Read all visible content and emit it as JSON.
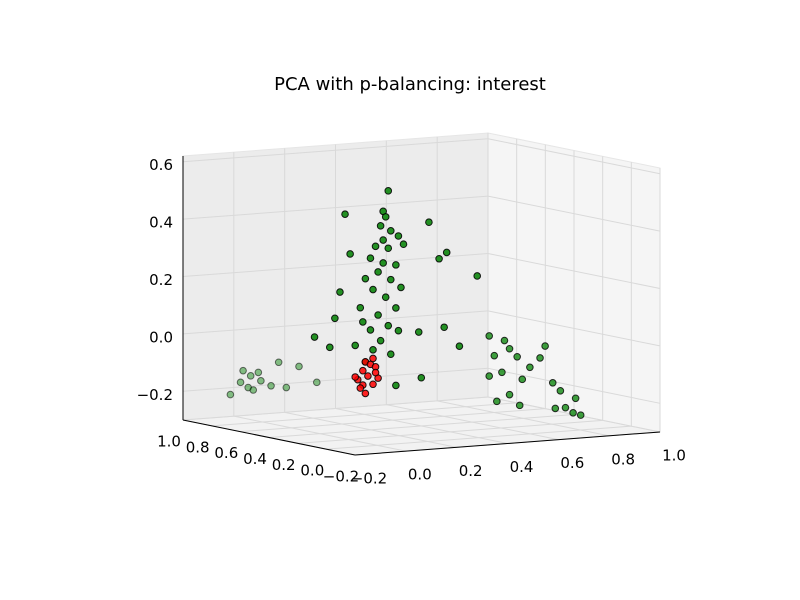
{
  "chart_data": {
    "type": "scatter3d",
    "title": "PCA with p-balancing: interest",
    "xlim": [
      -0.2,
      1.0
    ],
    "ylim": [
      -0.2,
      1.0
    ],
    "zlim": [
      -0.3,
      0.62
    ],
    "xticks": [
      {
        "value": -0.2,
        "label": "−0.2"
      },
      {
        "value": 0,
        "label": "0.0"
      },
      0.2,
      0.4,
      0.6,
      0.8,
      {
        "value": 1,
        "label": "1.0"
      }
    ],
    "yticks": [
      {
        "value": -0.2,
        "label": "−0.2"
      },
      {
        "value": 0,
        "label": "0.0"
      },
      0.2,
      0.4,
      0.6,
      0.8,
      {
        "value": 1,
        "label": "1.0"
      }
    ],
    "zticks": [
      {
        "value": -0.2,
        "label": "−0.2"
      },
      {
        "value": 0,
        "label": "0.0"
      },
      0.2,
      0.4,
      0.6
    ],
    "grid": true,
    "series": [
      {
        "color": "#008000",
        "x": [
          0.1,
          0.08,
          0.09,
          0.07,
          0.11,
          0.08,
          0.14,
          0.05,
          0.1,
          0.16,
          0.03,
          0.08,
          0.13,
          0.06,
          0.01,
          0.11,
          0.15,
          0.04,
          0.09,
          -0.01,
          0.13,
          0.06,
          0.0,
          0.1,
          0.03,
          0.14,
          0.07,
          -0.03,
          0.04,
          0.11,
          0.01,
          -0.07,
          -0.05,
          -0.09,
          -0.11,
          -0.19,
          -0.13,
          0.26,
          0.3,
          0.33,
          0.45,
          0.32,
          0.38,
          0.22,
          0.13,
          0.23,
          -0.07,
          -0.03,
          0.01,
          0.04,
          0.05,
          0.0,
          0.09,
          0.12,
          0.15,
          0.2,
          0.27,
          -0.02,
          0.02,
          0.61,
          0.63,
          0.67,
          0.69,
          0.72,
          0.74,
          0.61,
          0.64,
          0.69,
          0.73,
          0.77,
          0.83,
          0.81,
          0.86,
          0.89,
          0.91,
          0.95,
          0.94,
          0.97,
          0.87,
          0.66
        ],
        "y": [
          0.1,
          0.1,
          0.1,
          0.1,
          0.1,
          0.1,
          0.1,
          0.1,
          0.1,
          0.1,
          0.1,
          0.1,
          0.1,
          0.1,
          0.1,
          0.1,
          0.1,
          0.1,
          0.1,
          0.1,
          0.1,
          0.1,
          0.1,
          0.1,
          0.1,
          0.1,
          0.1,
          0.1,
          0.1,
          0.1,
          0.1,
          0.1,
          0.1,
          0.1,
          0.1,
          0.1,
          0.1,
          0.1,
          0.1,
          0.1,
          0.1,
          0.1,
          0.1,
          0.1,
          0.1,
          0.1,
          0.9,
          0.9,
          0.9,
          0.9,
          0.9,
          0.9,
          0.9,
          0.9,
          0.9,
          0.9,
          0.9,
          0.9,
          0.9,
          0.3,
          0.3,
          0.3,
          0.3,
          0.3,
          0.3,
          0.3,
          0.3,
          0.3,
          0.3,
          0.3,
          0.3,
          0.3,
          0.3,
          0.3,
          0.3,
          0.3,
          0.3,
          0.3,
          0.3,
          0.3
        ],
        "z": [
          0.57,
          0.5,
          0.48,
          0.45,
          0.43,
          0.4,
          0.41,
          0.38,
          0.37,
          0.38,
          0.34,
          0.32,
          0.31,
          0.29,
          0.27,
          0.26,
          0.23,
          0.23,
          0.2,
          0.17,
          0.16,
          0.14,
          0.12,
          0.1,
          0.09,
          0.08,
          0.05,
          0.04,
          0.02,
          0.0,
          -0.02,
          0.5,
          0.36,
          0.23,
          0.14,
          0.08,
          0.04,
          0.45,
          0.32,
          0.34,
          0.25,
          0.08,
          0.01,
          0.07,
          -0.11,
          -0.09,
          -0.21,
          -0.17,
          -0.15,
          -0.14,
          -0.17,
          -0.19,
          -0.19,
          -0.11,
          -0.2,
          -0.13,
          -0.19,
          -0.13,
          -0.2,
          0.01,
          -0.06,
          -0.01,
          -0.04,
          -0.07,
          -0.15,
          -0.13,
          -0.22,
          -0.2,
          -0.24,
          -0.11,
          -0.04,
          -0.08,
          -0.17,
          -0.2,
          -0.26,
          -0.23,
          -0.28,
          -0.29,
          -0.26,
          -0.12
        ]
      },
      {
        "color": "#ff0000",
        "x": [
          0.01,
          0.03,
          0.0,
          0.05,
          -0.02,
          0.02,
          0.06,
          0.0,
          0.04,
          -0.01,
          0.05,
          0.01,
          -0.03,
          0.04
        ],
        "y": [
          0.1,
          0.1,
          0.1,
          0.1,
          0.1,
          0.1,
          0.1,
          0.1,
          0.1,
          0.1,
          0.1,
          0.1,
          0.1,
          0.1
        ],
        "z": [
          -0.02,
          -0.03,
          -0.05,
          -0.04,
          -0.08,
          -0.07,
          -0.08,
          -0.1,
          -0.1,
          -0.11,
          -0.06,
          -0.13,
          -0.07,
          -0.01
        ]
      }
    ]
  }
}
